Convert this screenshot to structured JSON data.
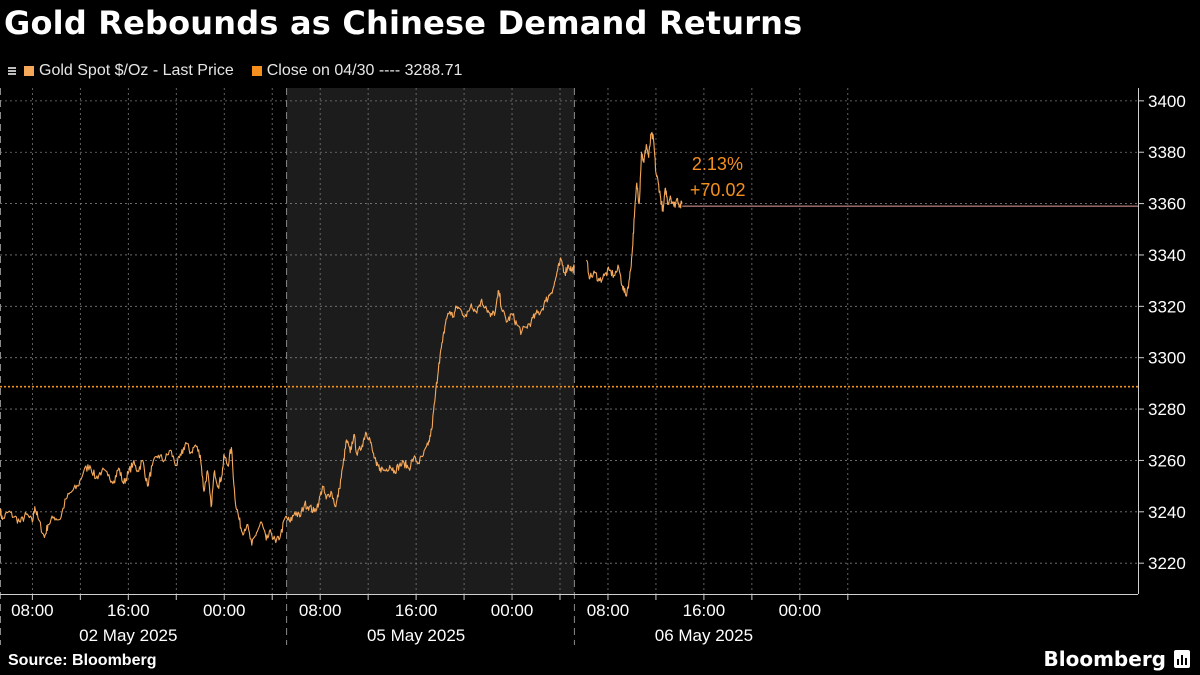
{
  "title": "Gold Rebounds as Chinese Demand Returns",
  "legend": [
    {
      "label": "Gold Spot $/Oz - Last Price",
      "color": "#f5a85a"
    },
    {
      "label": "Close on 04/30 ---- 3288.71",
      "color": "#f5901e"
    }
  ],
  "source": "Source: Bloomberg",
  "brand": "Bloomberg",
  "colors": {
    "background": "#000000",
    "weekend_band": "#1c1c1c",
    "price_line": "#f5a85a",
    "close_line": "#f5901e",
    "annotation": "#f5901e",
    "last_price_line": "#e8a0a0",
    "grid": "#7a7a7a",
    "text": "#ffffff"
  },
  "chart_data": {
    "type": "line",
    "title": "Gold Rebounds as Chinese Demand Returns",
    "x_unit": "hours since 2025-05-02 00:00",
    "xlim": [
      5.3,
      100.2
    ],
    "ylim": [
      3208,
      3405
    ],
    "yticks": [
      3220,
      3240,
      3260,
      3280,
      3300,
      3320,
      3340,
      3360,
      3380,
      3400
    ],
    "xticks": [
      {
        "x": 8,
        "label": "08:00"
      },
      {
        "x": 16,
        "label": "16:00"
      },
      {
        "x": 24,
        "label": "00:00"
      },
      {
        "x": 32,
        "label": "08:00"
      },
      {
        "x": 40,
        "label": "16:00"
      },
      {
        "x": 48,
        "label": "00:00"
      },
      {
        "x": 56,
        "label": "08:00"
      },
      {
        "x": 64,
        "label": "16:00"
      },
      {
        "x": 72,
        "label": "00:00"
      }
    ],
    "date_labels": [
      {
        "x": 16,
        "label": "02 May 2025"
      },
      {
        "x": 40,
        "label": "05 May 2025"
      },
      {
        "x": 64,
        "label": "06 May 2025"
      }
    ],
    "session_breaks": [
      29.2,
      53.2
    ],
    "extra_gridlines": [
      4,
      12,
      20,
      28,
      36,
      44,
      52,
      60,
      68,
      76
    ],
    "weekend_band": [
      29.2,
      53.2
    ],
    "grid": true,
    "legend_position": "top-left",
    "series": [
      {
        "name": "Gold Spot $/Oz - Last Price",
        "segments": [
          [
            [
              5.3,
              3241
            ],
            [
              5.5,
              3237
            ],
            [
              6.0,
              3240
            ],
            [
              6.5,
              3238
            ],
            [
              7.0,
              3236
            ],
            [
              7.5,
              3239
            ],
            [
              8.0,
              3236
            ],
            [
              8.2,
              3242
            ],
            [
              8.5,
              3237
            ],
            [
              9.0,
              3230
            ],
            [
              9.3,
              3235
            ],
            [
              9.8,
              3238
            ],
            [
              10.3,
              3237
            ],
            [
              10.8,
              3245
            ],
            [
              11.3,
              3248
            ],
            [
              11.8,
              3250
            ],
            [
              12.3,
              3256
            ],
            [
              12.8,
              3258
            ],
            [
              13.3,
              3253
            ],
            [
              13.8,
              3256
            ],
            [
              14.3,
              3254
            ],
            [
              14.8,
              3252
            ],
            [
              15.2,
              3257
            ],
            [
              15.6,
              3251
            ],
            [
              16.0,
              3255
            ],
            [
              16.4,
              3259
            ],
            [
              16.8,
              3256
            ],
            [
              17.2,
              3260
            ],
            [
              17.6,
              3250
            ],
            [
              18.0,
              3258
            ],
            [
              18.5,
              3262
            ],
            [
              19.0,
              3260
            ],
            [
              19.5,
              3264
            ],
            [
              20.0,
              3258
            ],
            [
              20.4,
              3262
            ],
            [
              20.8,
              3267
            ],
            [
              21.2,
              3263
            ],
            [
              21.6,
              3266
            ],
            [
              22.0,
              3262
            ],
            [
              22.3,
              3248
            ],
            [
              22.6,
              3256
            ],
            [
              22.9,
              3242
            ],
            [
              23.2,
              3256
            ],
            [
              23.5,
              3250
            ],
            [
              23.8,
              3254
            ],
            [
              24.0,
              3262
            ],
            [
              24.3,
              3258
            ],
            [
              24.6,
              3265
            ],
            [
              24.9,
              3245
            ],
            [
              25.2,
              3238
            ],
            [
              25.5,
              3232
            ],
            [
              25.9,
              3235
            ],
            [
              26.3,
              3227
            ],
            [
              26.7,
              3232
            ],
            [
              27.1,
              3236
            ],
            [
              27.5,
              3229
            ],
            [
              27.9,
              3232
            ],
            [
              28.3,
              3228
            ],
            [
              28.7,
              3231
            ],
            [
              29.1,
              3238
            ],
            [
              29.5,
              3236
            ],
            [
              29.9,
              3240
            ],
            [
              30.3,
              3238
            ],
            [
              30.7,
              3243
            ],
            [
              31.1,
              3242
            ],
            [
              31.5,
              3240
            ],
            [
              31.9,
              3244
            ],
            [
              32.2,
              3250
            ],
            [
              32.5,
              3245
            ],
            [
              32.9,
              3248
            ],
            [
              33.3,
              3242
            ],
            [
              33.6,
              3249
            ],
            [
              33.9,
              3258
            ],
            [
              34.2,
              3268
            ],
            [
              34.5,
              3263
            ],
            [
              34.8,
              3270
            ],
            [
              35.1,
              3262
            ],
            [
              35.5,
              3266
            ],
            [
              35.8,
              3271
            ],
            [
              36.1,
              3269
            ],
            [
              36.4,
              3263
            ],
            [
              36.7,
              3258
            ],
            [
              37.0,
              3257
            ],
            [
              37.4,
              3256
            ],
            [
              37.8,
              3258
            ],
            [
              38.2,
              3256
            ],
            [
              38.6,
              3258
            ],
            [
              39.0,
              3259
            ],
            [
              39.4,
              3257
            ],
            [
              39.8,
              3261
            ],
            [
              40.2,
              3259
            ],
            [
              40.6,
              3262
            ],
            [
              41.0,
              3266
            ],
            [
              41.3,
              3272
            ],
            [
              41.6,
              3285
            ],
            [
              41.9,
              3298
            ],
            [
              42.2,
              3306
            ],
            [
              42.5,
              3315
            ],
            [
              42.8,
              3318
            ],
            [
              43.1,
              3316
            ],
            [
              43.4,
              3320
            ],
            [
              43.8,
              3318
            ],
            [
              44.2,
              3316
            ],
            [
              44.6,
              3321
            ],
            [
              45.0,
              3318
            ],
            [
              45.4,
              3322
            ],
            [
              45.8,
              3320
            ],
            [
              46.2,
              3316
            ],
            [
              46.6,
              3318
            ],
            [
              46.9,
              3326
            ],
            [
              47.2,
              3318
            ],
            [
              47.6,
              3314
            ],
            [
              48.0,
              3317
            ],
            [
              48.4,
              3313
            ],
            [
              48.8,
              3310
            ],
            [
              49.2,
              3312
            ],
            [
              49.6,
              3314
            ],
            [
              50.0,
              3317
            ],
            [
              50.4,
              3318
            ],
            [
              50.8,
              3322
            ],
            [
              51.2,
              3325
            ],
            [
              51.5,
              3328
            ],
            [
              51.8,
              3334
            ],
            [
              52.1,
              3338
            ],
            [
              52.4,
              3333
            ],
            [
              52.7,
              3336
            ],
            [
              53.0,
              3334
            ],
            [
              53.2,
              3335
            ]
          ],
          [
            [
              54.2,
              3338
            ],
            [
              54.5,
              3331
            ],
            [
              54.9,
              3333
            ],
            [
              55.3,
              3330
            ],
            [
              55.7,
              3332
            ],
            [
              56.1,
              3334
            ],
            [
              56.5,
              3332
            ],
            [
              56.9,
              3335
            ],
            [
              57.2,
              3328
            ],
            [
              57.5,
              3324
            ],
            [
              57.8,
              3331
            ],
            [
              58.0,
              3340
            ],
            [
              58.2,
              3355
            ],
            [
              58.4,
              3368
            ],
            [
              58.6,
              3360
            ],
            [
              58.8,
              3380
            ],
            [
              59.0,
              3376
            ],
            [
              59.2,
              3383
            ],
            [
              59.4,
              3378
            ],
            [
              59.6,
              3387
            ],
            [
              59.8,
              3385
            ],
            [
              60.0,
              3372
            ],
            [
              60.2,
              3368
            ],
            [
              60.4,
              3362
            ],
            [
              60.6,
              3357
            ],
            [
              60.8,
              3366
            ],
            [
              61.0,
              3360
            ],
            [
              61.2,
              3363
            ],
            [
              61.5,
              3359
            ],
            [
              61.8,
              3362
            ],
            [
              62.0,
              3359
            ],
            [
              62.2,
              3360
            ]
          ]
        ]
      },
      {
        "name": "Close on 04/30",
        "value": 3288.71
      }
    ],
    "last_price": 3359,
    "annotation": {
      "pct": "2.13%",
      "change": "+70.02",
      "x": 63.0
    }
  }
}
